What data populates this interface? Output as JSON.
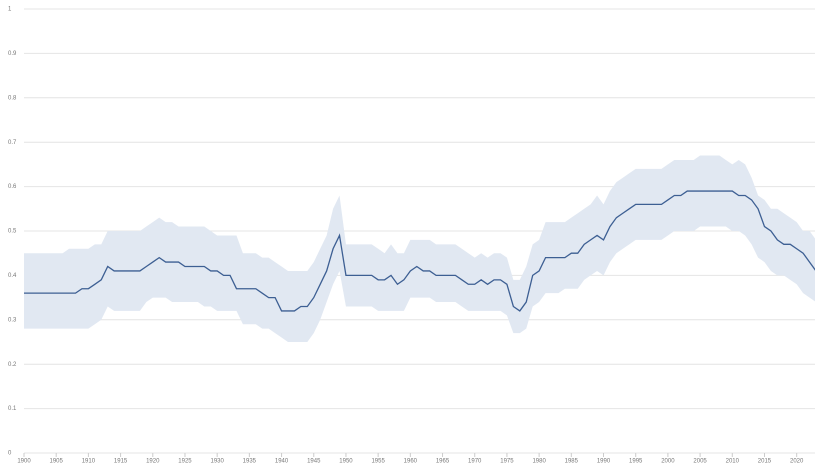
{
  "chart_data": {
    "type": "line",
    "x": [
      1900,
      1901,
      1902,
      1903,
      1904,
      1905,
      1906,
      1907,
      1908,
      1909,
      1910,
      1911,
      1912,
      1913,
      1914,
      1915,
      1916,
      1917,
      1918,
      1919,
      1920,
      1921,
      1922,
      1923,
      1924,
      1925,
      1926,
      1927,
      1928,
      1929,
      1930,
      1931,
      1932,
      1933,
      1934,
      1935,
      1936,
      1937,
      1938,
      1939,
      1940,
      1941,
      1942,
      1943,
      1944,
      1945,
      1946,
      1947,
      1948,
      1949,
      1950,
      1951,
      1952,
      1953,
      1954,
      1955,
      1956,
      1957,
      1958,
      1959,
      1960,
      1961,
      1962,
      1963,
      1964,
      1965,
      1966,
      1967,
      1968,
      1969,
      1970,
      1971,
      1972,
      1973,
      1974,
      1975,
      1976,
      1977,
      1978,
      1979,
      1980,
      1981,
      1982,
      1983,
      1984,
      1985,
      1986,
      1987,
      1988,
      1989,
      1990,
      1991,
      1992,
      1993,
      1994,
      1995,
      1996,
      1997,
      1998,
      1999,
      2000,
      2001,
      2002,
      2003,
      2004,
      2005,
      2006,
      2007,
      2008,
      2009,
      2010,
      2011,
      2012,
      2013,
      2014,
      2015,
      2016,
      2017,
      2018,
      2019,
      2020,
      2021,
      2022,
      2023
    ],
    "values": [
      0.36,
      0.36,
      0.36,
      0.36,
      0.36,
      0.36,
      0.36,
      0.36,
      0.36,
      0.37,
      0.37,
      0.38,
      0.39,
      0.42,
      0.41,
      0.41,
      0.41,
      0.41,
      0.41,
      0.42,
      0.43,
      0.44,
      0.43,
      0.43,
      0.43,
      0.42,
      0.42,
      0.42,
      0.42,
      0.41,
      0.41,
      0.4,
      0.4,
      0.37,
      0.37,
      0.37,
      0.37,
      0.36,
      0.35,
      0.35,
      0.32,
      0.32,
      0.32,
      0.33,
      0.33,
      0.35,
      0.38,
      0.41,
      0.46,
      0.49,
      0.4,
      0.4,
      0.4,
      0.4,
      0.4,
      0.39,
      0.39,
      0.4,
      0.38,
      0.39,
      0.41,
      0.42,
      0.41,
      0.41,
      0.4,
      0.4,
      0.4,
      0.4,
      0.39,
      0.38,
      0.38,
      0.39,
      0.38,
      0.39,
      0.39,
      0.38,
      0.33,
      0.32,
      0.34,
      0.4,
      0.41,
      0.44,
      0.44,
      0.44,
      0.44,
      0.45,
      0.45,
      0.47,
      0.48,
      0.49,
      0.48,
      0.51,
      0.53,
      0.54,
      0.55,
      0.56,
      0.56,
      0.56,
      0.56,
      0.56,
      0.57,
      0.58,
      0.58,
      0.59,
      0.59,
      0.59,
      0.59,
      0.59,
      0.59,
      0.59,
      0.59,
      0.58,
      0.58,
      0.57,
      0.55,
      0.51,
      0.5,
      0.48,
      0.47,
      0.47,
      0.46,
      0.45,
      0.43,
      0.41
    ],
    "band": {
      "upper": [
        0.45,
        0.45,
        0.45,
        0.45,
        0.45,
        0.45,
        0.45,
        0.46,
        0.46,
        0.46,
        0.46,
        0.47,
        0.47,
        0.5,
        0.5,
        0.5,
        0.5,
        0.5,
        0.5,
        0.51,
        0.52,
        0.53,
        0.52,
        0.52,
        0.51,
        0.51,
        0.51,
        0.51,
        0.51,
        0.5,
        0.49,
        0.49,
        0.49,
        0.49,
        0.45,
        0.45,
        0.45,
        0.44,
        0.44,
        0.43,
        0.42,
        0.41,
        0.41,
        0.41,
        0.41,
        0.43,
        0.46,
        0.49,
        0.55,
        0.58,
        0.47,
        0.47,
        0.47,
        0.47,
        0.47,
        0.46,
        0.45,
        0.47,
        0.45,
        0.45,
        0.48,
        0.48,
        0.48,
        0.48,
        0.47,
        0.47,
        0.47,
        0.47,
        0.46,
        0.45,
        0.44,
        0.45,
        0.44,
        0.45,
        0.45,
        0.44,
        0.39,
        0.39,
        0.42,
        0.47,
        0.48,
        0.52,
        0.52,
        0.52,
        0.52,
        0.53,
        0.54,
        0.55,
        0.56,
        0.58,
        0.56,
        0.59,
        0.61,
        0.62,
        0.63,
        0.64,
        0.64,
        0.64,
        0.64,
        0.64,
        0.65,
        0.66,
        0.66,
        0.66,
        0.66,
        0.67,
        0.67,
        0.67,
        0.67,
        0.66,
        0.65,
        0.66,
        0.65,
        0.62,
        0.58,
        0.57,
        0.55,
        0.55,
        0.54,
        0.53,
        0.52,
        0.5,
        0.5,
        0.48
      ],
      "lower": [
        0.28,
        0.28,
        0.28,
        0.28,
        0.28,
        0.28,
        0.28,
        0.28,
        0.28,
        0.28,
        0.28,
        0.29,
        0.3,
        0.33,
        0.32,
        0.32,
        0.32,
        0.32,
        0.32,
        0.34,
        0.35,
        0.35,
        0.35,
        0.34,
        0.34,
        0.34,
        0.34,
        0.34,
        0.33,
        0.33,
        0.32,
        0.32,
        0.32,
        0.32,
        0.29,
        0.29,
        0.29,
        0.28,
        0.28,
        0.27,
        0.26,
        0.25,
        0.25,
        0.25,
        0.25,
        0.27,
        0.3,
        0.34,
        0.38,
        0.41,
        0.33,
        0.33,
        0.33,
        0.33,
        0.33,
        0.32,
        0.32,
        0.32,
        0.32,
        0.32,
        0.35,
        0.35,
        0.35,
        0.35,
        0.34,
        0.34,
        0.34,
        0.34,
        0.33,
        0.32,
        0.32,
        0.32,
        0.32,
        0.32,
        0.32,
        0.31,
        0.27,
        0.27,
        0.28,
        0.33,
        0.34,
        0.36,
        0.36,
        0.36,
        0.37,
        0.37,
        0.37,
        0.39,
        0.4,
        0.41,
        0.4,
        0.43,
        0.45,
        0.46,
        0.47,
        0.48,
        0.48,
        0.48,
        0.48,
        0.48,
        0.49,
        0.5,
        0.5,
        0.5,
        0.5,
        0.51,
        0.51,
        0.51,
        0.51,
        0.51,
        0.5,
        0.5,
        0.49,
        0.47,
        0.44,
        0.43,
        0.41,
        0.4,
        0.4,
        0.39,
        0.38,
        0.36,
        0.35,
        0.34
      ]
    },
    "color": "#3d5f93",
    "band_color": "#e1e8f2",
    "xlim": [
      1900,
      2023
    ],
    "ylim": [
      0,
      1
    ],
    "xticks": [
      1900,
      1905,
      1910,
      1915,
      1920,
      1925,
      1930,
      1935,
      1940,
      1945,
      1950,
      1955,
      1960,
      1965,
      1970,
      1975,
      1980,
      1985,
      1990,
      1995,
      2000,
      2005,
      2010,
      2015,
      2020
    ],
    "yticks": [
      0,
      0.1,
      0.2,
      0.3,
      0.4,
      0.5,
      0.6,
      0.7,
      0.8,
      0.9,
      1
    ],
    "grid": true
  }
}
